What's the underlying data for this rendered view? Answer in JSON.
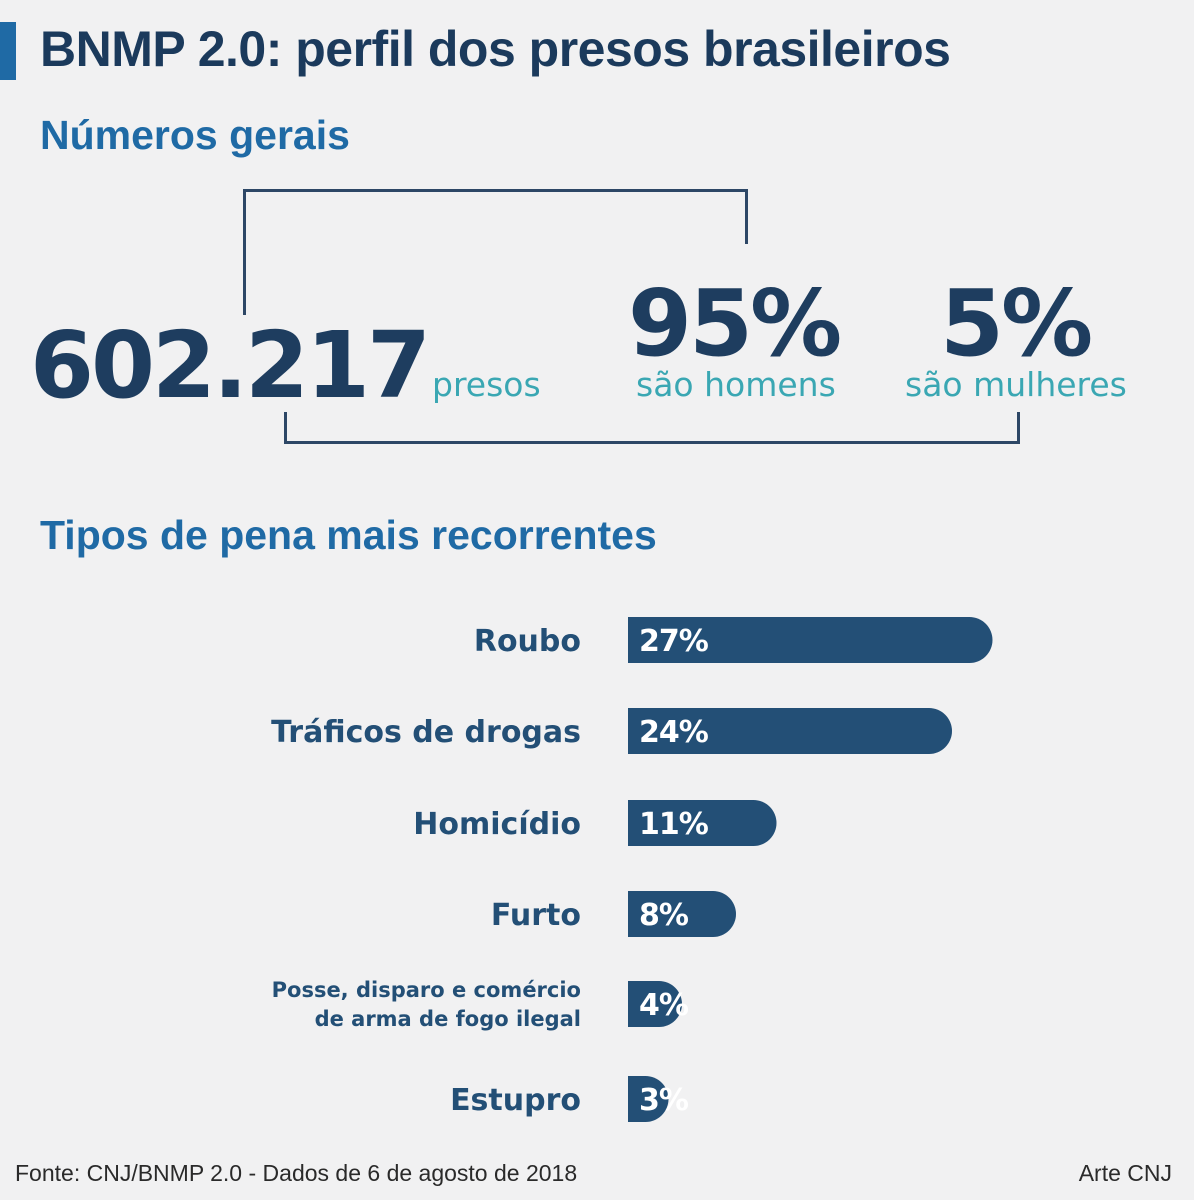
{
  "title": "BNMP 2.0: perfil dos presos brasileiros",
  "section_general": "Números gerais",
  "general": {
    "total_value": "602.217",
    "total_label": "presos",
    "men_value": "95%",
    "men_label": "são homens",
    "women_value": "5%",
    "women_label": "são mulheres"
  },
  "section_types": "Tipos de pena mais recorrentes",
  "chart_data": {
    "type": "bar",
    "orientation": "horizontal",
    "title": "Tipos de pena mais recorrentes",
    "categories": [
      [
        "Roubo"
      ],
      [
        "Tráficos de drogas"
      ],
      [
        "Homicídio"
      ],
      [
        "Furto"
      ],
      [
        "Posse, disparo e comércio",
        "de arma de fogo ilegal"
      ],
      [
        "Estupro"
      ]
    ],
    "values": [
      27,
      24,
      11,
      8,
      4,
      3
    ],
    "value_labels": [
      "27%",
      "24%",
      "11%",
      "8%",
      "4%",
      "3%"
    ],
    "unit": "%",
    "bar_color": "#234f76",
    "label_color": "#234f76",
    "grid": false,
    "legend": "none"
  },
  "footer": {
    "source": "Fonte: CNJ/BNMP 2.0 - Dados de 6 de agosto de 2018",
    "credit": "Arte CNJ"
  }
}
